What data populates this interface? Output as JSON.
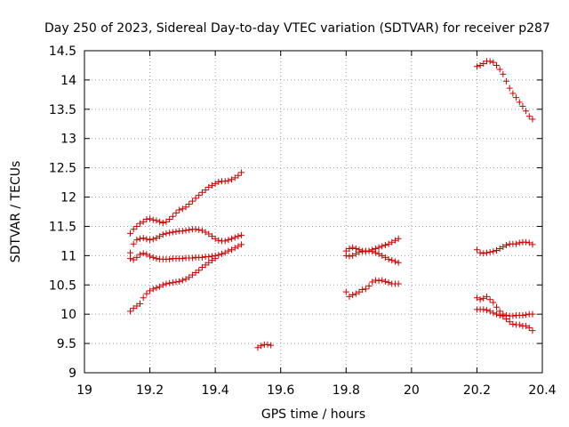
{
  "chart_data": {
    "type": "scatter",
    "title": "Day 250 of 2023, Sidereal Day-to-day VTEC variation (SDTVAR) for receiver p287",
    "xlabel": "GPS time / hours",
    "ylabel": "SDTVAR / TECUs",
    "xlim": [
      19,
      20.4
    ],
    "ylim": [
      9,
      14.5
    ],
    "xticks": [
      "19",
      "19.2",
      "19.4",
      "19.6",
      "19.8",
      "20",
      "20.2",
      "20.4"
    ],
    "yticks": [
      "9",
      "9.5",
      "10",
      "10.5",
      "11",
      "11.5",
      "12",
      "12.5",
      "13",
      "13.5",
      "14",
      "14.5"
    ],
    "grid": true,
    "marker": "+",
    "color": "#cc0000",
    "series": [
      {
        "name": "s1",
        "points": [
          [
            19.14,
            11.38
          ],
          [
            19.15,
            11.45
          ],
          [
            19.16,
            11.5
          ],
          [
            19.17,
            11.55
          ],
          [
            19.18,
            11.58
          ],
          [
            19.19,
            11.62
          ],
          [
            19.2,
            11.63
          ],
          [
            19.21,
            11.61
          ],
          [
            19.22,
            11.6
          ],
          [
            19.23,
            11.58
          ],
          [
            19.24,
            11.56
          ],
          [
            19.25,
            11.58
          ],
          [
            19.26,
            11.62
          ],
          [
            19.27,
            11.67
          ],
          [
            19.28,
            11.73
          ],
          [
            19.29,
            11.78
          ],
          [
            19.3,
            11.8
          ],
          [
            19.31,
            11.83
          ],
          [
            19.32,
            11.88
          ],
          [
            19.33,
            11.93
          ],
          [
            19.34,
            11.98
          ],
          [
            19.35,
            12.03
          ],
          [
            19.36,
            12.08
          ],
          [
            19.37,
            12.12
          ],
          [
            19.38,
            12.17
          ],
          [
            19.39,
            12.2
          ],
          [
            19.4,
            12.23
          ],
          [
            19.41,
            12.26
          ],
          [
            19.42,
            12.27
          ],
          [
            19.43,
            12.27
          ],
          [
            19.44,
            12.28
          ],
          [
            19.45,
            12.3
          ],
          [
            19.46,
            12.33
          ],
          [
            19.47,
            12.37
          ],
          [
            19.48,
            12.42
          ]
        ]
      },
      {
        "name": "s2",
        "points": [
          [
            19.14,
            11.05
          ],
          [
            19.15,
            11.2
          ],
          [
            19.16,
            11.27
          ],
          [
            19.17,
            11.29
          ],
          [
            19.18,
            11.3
          ],
          [
            19.19,
            11.28
          ],
          [
            19.2,
            11.27
          ],
          [
            19.21,
            11.28
          ],
          [
            19.22,
            11.3
          ],
          [
            19.23,
            11.33
          ],
          [
            19.24,
            11.36
          ],
          [
            19.25,
            11.38
          ],
          [
            19.26,
            11.39
          ],
          [
            19.27,
            11.4
          ],
          [
            19.28,
            11.41
          ],
          [
            19.29,
            11.42
          ],
          [
            19.3,
            11.42
          ],
          [
            19.31,
            11.43
          ],
          [
            19.32,
            11.44
          ],
          [
            19.33,
            11.45
          ],
          [
            19.34,
            11.45
          ],
          [
            19.35,
            11.44
          ],
          [
            19.36,
            11.43
          ],
          [
            19.37,
            11.4
          ],
          [
            19.38,
            11.37
          ],
          [
            19.39,
            11.33
          ],
          [
            19.4,
            11.29
          ],
          [
            19.41,
            11.26
          ],
          [
            19.42,
            11.25
          ],
          [
            19.43,
            11.25
          ],
          [
            19.44,
            11.27
          ],
          [
            19.45,
            11.29
          ],
          [
            19.46,
            11.31
          ],
          [
            19.47,
            11.33
          ],
          [
            19.48,
            11.35
          ]
        ]
      },
      {
        "name": "s3",
        "points": [
          [
            19.14,
            10.95
          ],
          [
            19.15,
            10.93
          ],
          [
            19.16,
            10.97
          ],
          [
            19.17,
            11.02
          ],
          [
            19.18,
            11.04
          ],
          [
            19.19,
            11.02
          ],
          [
            19.2,
            10.99
          ],
          [
            19.21,
            10.97
          ],
          [
            19.22,
            10.95
          ],
          [
            19.23,
            10.94
          ],
          [
            19.24,
            10.94
          ],
          [
            19.25,
            10.94
          ],
          [
            19.26,
            10.94
          ],
          [
            19.27,
            10.95
          ],
          [
            19.28,
            10.95
          ],
          [
            19.29,
            10.95
          ],
          [
            19.3,
            10.95
          ],
          [
            19.31,
            10.96
          ],
          [
            19.32,
            10.96
          ],
          [
            19.33,
            10.96
          ],
          [
            19.34,
            10.97
          ],
          [
            19.35,
            10.97
          ],
          [
            19.36,
            10.97
          ],
          [
            19.37,
            10.98
          ],
          [
            19.38,
            10.98
          ],
          [
            19.39,
            10.99
          ],
          [
            19.4,
            11.0
          ],
          [
            19.41,
            11.01
          ],
          [
            19.42,
            11.03
          ],
          [
            19.43,
            11.05
          ],
          [
            19.44,
            11.08
          ],
          [
            19.45,
            11.1
          ],
          [
            19.46,
            11.13
          ],
          [
            19.47,
            11.16
          ],
          [
            19.48,
            11.19
          ]
        ]
      },
      {
        "name": "s4",
        "points": [
          [
            19.14,
            10.05
          ],
          [
            19.15,
            10.1
          ],
          [
            19.16,
            10.14
          ],
          [
            19.17,
            10.18
          ],
          [
            19.18,
            10.28
          ],
          [
            19.19,
            10.35
          ],
          [
            19.2,
            10.4
          ],
          [
            19.21,
            10.43
          ],
          [
            19.22,
            10.45
          ],
          [
            19.23,
            10.47
          ],
          [
            19.24,
            10.5
          ],
          [
            19.25,
            10.52
          ],
          [
            19.26,
            10.53
          ],
          [
            19.27,
            10.54
          ],
          [
            19.28,
            10.55
          ],
          [
            19.29,
            10.56
          ],
          [
            19.3,
            10.58
          ],
          [
            19.31,
            10.6
          ],
          [
            19.32,
            10.63
          ],
          [
            19.33,
            10.67
          ],
          [
            19.34,
            10.71
          ],
          [
            19.35,
            10.75
          ],
          [
            19.36,
            10.8
          ],
          [
            19.37,
            10.84
          ],
          [
            19.38,
            10.88
          ],
          [
            19.39,
            10.92
          ],
          [
            19.4,
            10.95
          ]
        ]
      },
      {
        "name": "s5",
        "points": [
          [
            19.53,
            9.43
          ],
          [
            19.54,
            9.46
          ],
          [
            19.55,
            9.48
          ],
          [
            19.56,
            9.48
          ],
          [
            19.57,
            9.47
          ]
        ]
      },
      {
        "name": "s6",
        "points": [
          [
            19.8,
            11.08
          ],
          [
            19.81,
            11.12
          ],
          [
            19.82,
            11.14
          ],
          [
            19.83,
            11.12
          ],
          [
            19.84,
            11.1
          ],
          [
            19.85,
            11.08
          ],
          [
            19.86,
            11.07
          ],
          [
            19.87,
            11.08
          ],
          [
            19.88,
            11.1
          ],
          [
            19.89,
            11.12
          ],
          [
            19.9,
            11.14
          ],
          [
            19.91,
            11.16
          ],
          [
            19.92,
            11.18
          ],
          [
            19.93,
            11.2
          ],
          [
            19.94,
            11.23
          ],
          [
            19.95,
            11.26
          ],
          [
            19.96,
            11.29
          ]
        ]
      },
      {
        "name": "s7",
        "points": [
          [
            19.8,
            11.0
          ],
          [
            19.81,
            10.99
          ],
          [
            19.82,
            11.0
          ],
          [
            19.83,
            11.03
          ],
          [
            19.84,
            11.06
          ],
          [
            19.85,
            11.07
          ],
          [
            19.86,
            11.08
          ],
          [
            19.87,
            11.08
          ],
          [
            19.88,
            11.07
          ],
          [
            19.89,
            11.05
          ],
          [
            19.9,
            11.03
          ],
          [
            19.91,
            11.0
          ],
          [
            19.92,
            10.97
          ],
          [
            19.93,
            10.94
          ],
          [
            19.94,
            10.92
          ],
          [
            19.95,
            10.9
          ],
          [
            19.96,
            10.88
          ]
        ]
      },
      {
        "name": "s8",
        "points": [
          [
            19.8,
            10.38
          ],
          [
            19.81,
            10.3
          ],
          [
            19.82,
            10.33
          ],
          [
            19.83,
            10.35
          ],
          [
            19.84,
            10.38
          ],
          [
            19.85,
            10.42
          ],
          [
            19.86,
            10.43
          ],
          [
            19.87,
            10.48
          ],
          [
            19.88,
            10.55
          ],
          [
            19.89,
            10.58
          ],
          [
            19.9,
            10.57
          ],
          [
            19.91,
            10.58
          ],
          [
            19.92,
            10.56
          ],
          [
            19.93,
            10.54
          ],
          [
            19.94,
            10.52
          ],
          [
            19.95,
            10.52
          ],
          [
            19.96,
            10.52
          ]
        ]
      },
      {
        "name": "s9",
        "points": [
          [
            20.2,
            14.23
          ],
          [
            20.21,
            14.25
          ],
          [
            20.22,
            14.28
          ],
          [
            20.23,
            14.32
          ],
          [
            20.24,
            14.32
          ],
          [
            20.25,
            14.3
          ],
          [
            20.26,
            14.25
          ],
          [
            20.27,
            14.18
          ],
          [
            20.28,
            14.1
          ],
          [
            20.29,
            13.98
          ],
          [
            20.3,
            13.86
          ],
          [
            20.31,
            13.77
          ],
          [
            20.32,
            13.7
          ],
          [
            20.33,
            13.62
          ],
          [
            20.34,
            13.55
          ],
          [
            20.35,
            13.47
          ],
          [
            20.36,
            13.38
          ],
          [
            20.37,
            13.33
          ]
        ]
      },
      {
        "name": "s10",
        "points": [
          [
            20.2,
            11.1
          ],
          [
            20.21,
            11.05
          ],
          [
            20.22,
            11.04
          ],
          [
            20.23,
            11.05
          ],
          [
            20.24,
            11.06
          ],
          [
            20.25,
            11.07
          ],
          [
            20.26,
            11.09
          ],
          [
            20.27,
            11.12
          ],
          [
            20.28,
            11.15
          ],
          [
            20.29,
            11.18
          ],
          [
            20.3,
            11.2
          ],
          [
            20.31,
            11.2
          ],
          [
            20.32,
            11.2
          ],
          [
            20.33,
            11.22
          ],
          [
            20.34,
            11.23
          ],
          [
            20.35,
            11.23
          ],
          [
            20.36,
            11.22
          ],
          [
            20.37,
            11.19
          ]
        ]
      },
      {
        "name": "s11",
        "points": [
          [
            20.2,
            10.28
          ],
          [
            20.21,
            10.25
          ],
          [
            20.22,
            10.27
          ],
          [
            20.23,
            10.3
          ],
          [
            20.24,
            10.25
          ],
          [
            20.25,
            10.2
          ],
          [
            20.26,
            10.12
          ],
          [
            20.27,
            10.05
          ],
          [
            20.28,
            10.0
          ],
          [
            20.29,
            9.98
          ],
          [
            20.3,
            9.97
          ],
          [
            20.31,
            9.97
          ],
          [
            20.32,
            9.98
          ],
          [
            20.33,
            9.98
          ],
          [
            20.34,
            9.98
          ],
          [
            20.35,
            9.99
          ],
          [
            20.36,
            10.0
          ],
          [
            20.37,
            10.0
          ]
        ]
      },
      {
        "name": "s12",
        "points": [
          [
            20.2,
            10.08
          ],
          [
            20.21,
            10.08
          ],
          [
            20.22,
            10.08
          ],
          [
            20.23,
            10.07
          ],
          [
            20.24,
            10.05
          ],
          [
            20.25,
            10.02
          ],
          [
            20.26,
            10.0
          ],
          [
            20.27,
            9.98
          ],
          [
            20.28,
            9.96
          ],
          [
            20.29,
            9.92
          ],
          [
            20.3,
            9.87
          ],
          [
            20.31,
            9.83
          ],
          [
            20.32,
            9.82
          ],
          [
            20.33,
            9.82
          ],
          [
            20.34,
            9.8
          ],
          [
            20.35,
            9.8
          ],
          [
            20.36,
            9.77
          ],
          [
            20.37,
            9.72
          ]
        ]
      }
    ]
  }
}
